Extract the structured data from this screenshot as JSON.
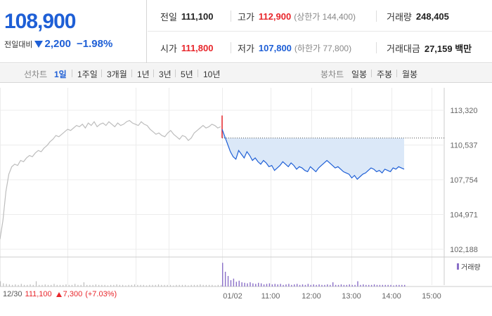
{
  "quote": {
    "price": "108,900",
    "change_label": "전일대비",
    "change_value": "2,200",
    "change_pct": "−1.98%",
    "prev_close_label": "전일",
    "prev_close": "111,100",
    "high_label": "고가",
    "high": "112,900",
    "upper_limit": "(상한가 144,400)",
    "volume_label": "거래량",
    "volume": "248,405",
    "open_label": "시가",
    "open": "111,800",
    "low_label": "저가",
    "low": "107,800",
    "lower_limit": "(하한가 77,800)",
    "amount_label": "거래대금",
    "amount": "27,159 백만"
  },
  "toolbar": {
    "line_label": "선차트",
    "periods": [
      "1일",
      "1주일",
      "3개월",
      "1년",
      "3년",
      "5년",
      "10년"
    ],
    "active_period": "1일",
    "candle_label": "봉차트",
    "candles": [
      "일봉",
      "주봉",
      "월봉"
    ]
  },
  "colors": {
    "up": "#e8262b",
    "down": "#1e5fd6",
    "volume": "#8a6fc8",
    "fill": "#dbe8f8"
  },
  "bottom": {
    "date": "12/30",
    "close": "111,100",
    "change": "7,300",
    "change_pct": "(+7.03%)"
  },
  "legend_label": "거래량",
  "chart_data": {
    "type": "line",
    "y_ticks": [
      "113,320",
      "110,537",
      "107,754",
      "104,971",
      "102,188"
    ],
    "y_tick_values": [
      113320,
      110537,
      107754,
      104971,
      102188
    ],
    "x_ticks": [
      "01/02",
      "11:00",
      "12:00",
      "13:00",
      "14:00",
      "15:00"
    ],
    "ylim": [
      102188,
      113320
    ],
    "reference_price": 111100,
    "series": [
      {
        "name": "",
        "segment": "12/30",
        "values": [
          103000,
          104500,
          106800,
          108200,
          108800,
          109000,
          108900,
          109300,
          109200,
          109500,
          109700,
          109600,
          109900,
          110100,
          110000,
          110300,
          110500,
          110800,
          111000,
          111300,
          111200,
          111400,
          111600,
          111800,
          111700,
          111900,
          112100,
          112000,
          112200,
          111900,
          112300,
          112100,
          112400,
          112000,
          112200,
          112300,
          112100,
          112400,
          112200,
          112000,
          112300,
          112100,
          112200,
          112400,
          112500,
          112300,
          112200,
          112100,
          112400,
          112200,
          112100,
          111800,
          111600,
          111400,
          111500,
          111300,
          111200,
          111500,
          111700,
          111400,
          111200,
          111000,
          111300,
          111200,
          110900,
          111100,
          111500,
          111700,
          111900,
          112100,
          111900,
          112000,
          112200,
          112100,
          111900,
          112000
        ]
      },
      {
        "name": "",
        "segment": "01/02",
        "values": [
          111800,
          111200,
          110600,
          110000,
          109600,
          109400,
          110100,
          109800,
          109500,
          110000,
          109700,
          109300,
          109500,
          109200,
          109000,
          109300,
          109100,
          108800,
          108900,
          108500,
          108700,
          108900,
          109200,
          109000,
          108800,
          109100,
          108900,
          108600,
          108800,
          108700,
          108500,
          108400,
          108800,
          108600,
          108400,
          108700,
          108900,
          109100,
          109300,
          109100,
          108900,
          108700,
          108800,
          108600,
          108400,
          108300,
          108200,
          107900,
          108100,
          107800,
          108000,
          108200,
          108300,
          108500,
          108700,
          108600,
          108400,
          108500,
          108300,
          108600,
          108500,
          108400,
          108700,
          108600,
          108800,
          108700,
          108600
        ]
      }
    ],
    "volume": {
      "name": "거래량",
      "segment1": [
        10,
        6,
        5,
        4,
        3,
        4,
        3,
        5,
        3,
        3,
        4,
        3,
        10,
        3,
        3,
        4,
        3,
        3,
        5,
        3,
        3,
        3,
        4,
        3,
        3,
        5,
        3,
        3,
        8,
        3,
        3,
        3,
        4,
        3,
        3,
        3,
        2,
        3,
        3,
        4,
        3,
        3,
        2,
        3,
        3,
        4,
        3,
        3,
        3,
        2,
        3,
        3,
        3,
        4,
        3,
        3,
        3,
        3,
        2,
        3,
        3,
        3,
        3,
        2,
        3,
        3,
        3,
        4,
        3,
        3,
        3,
        3,
        2,
        3,
        3
      ],
      "segment2": [
        45,
        28,
        20,
        12,
        15,
        9,
        11,
        8,
        7,
        6,
        8,
        6,
        5,
        7,
        6,
        4,
        5,
        6,
        4,
        5,
        4,
        5,
        3,
        4,
        5,
        3,
        4,
        5,
        3,
        4,
        3,
        5,
        3,
        4,
        3,
        4,
        3,
        3,
        4,
        3,
        8,
        3,
        3,
        4,
        3,
        3,
        4,
        3,
        3,
        10,
        3,
        4,
        3,
        3,
        3,
        4,
        3,
        3,
        3,
        3,
        3,
        3,
        2,
        3,
        3,
        3,
        3
      ]
    }
  }
}
